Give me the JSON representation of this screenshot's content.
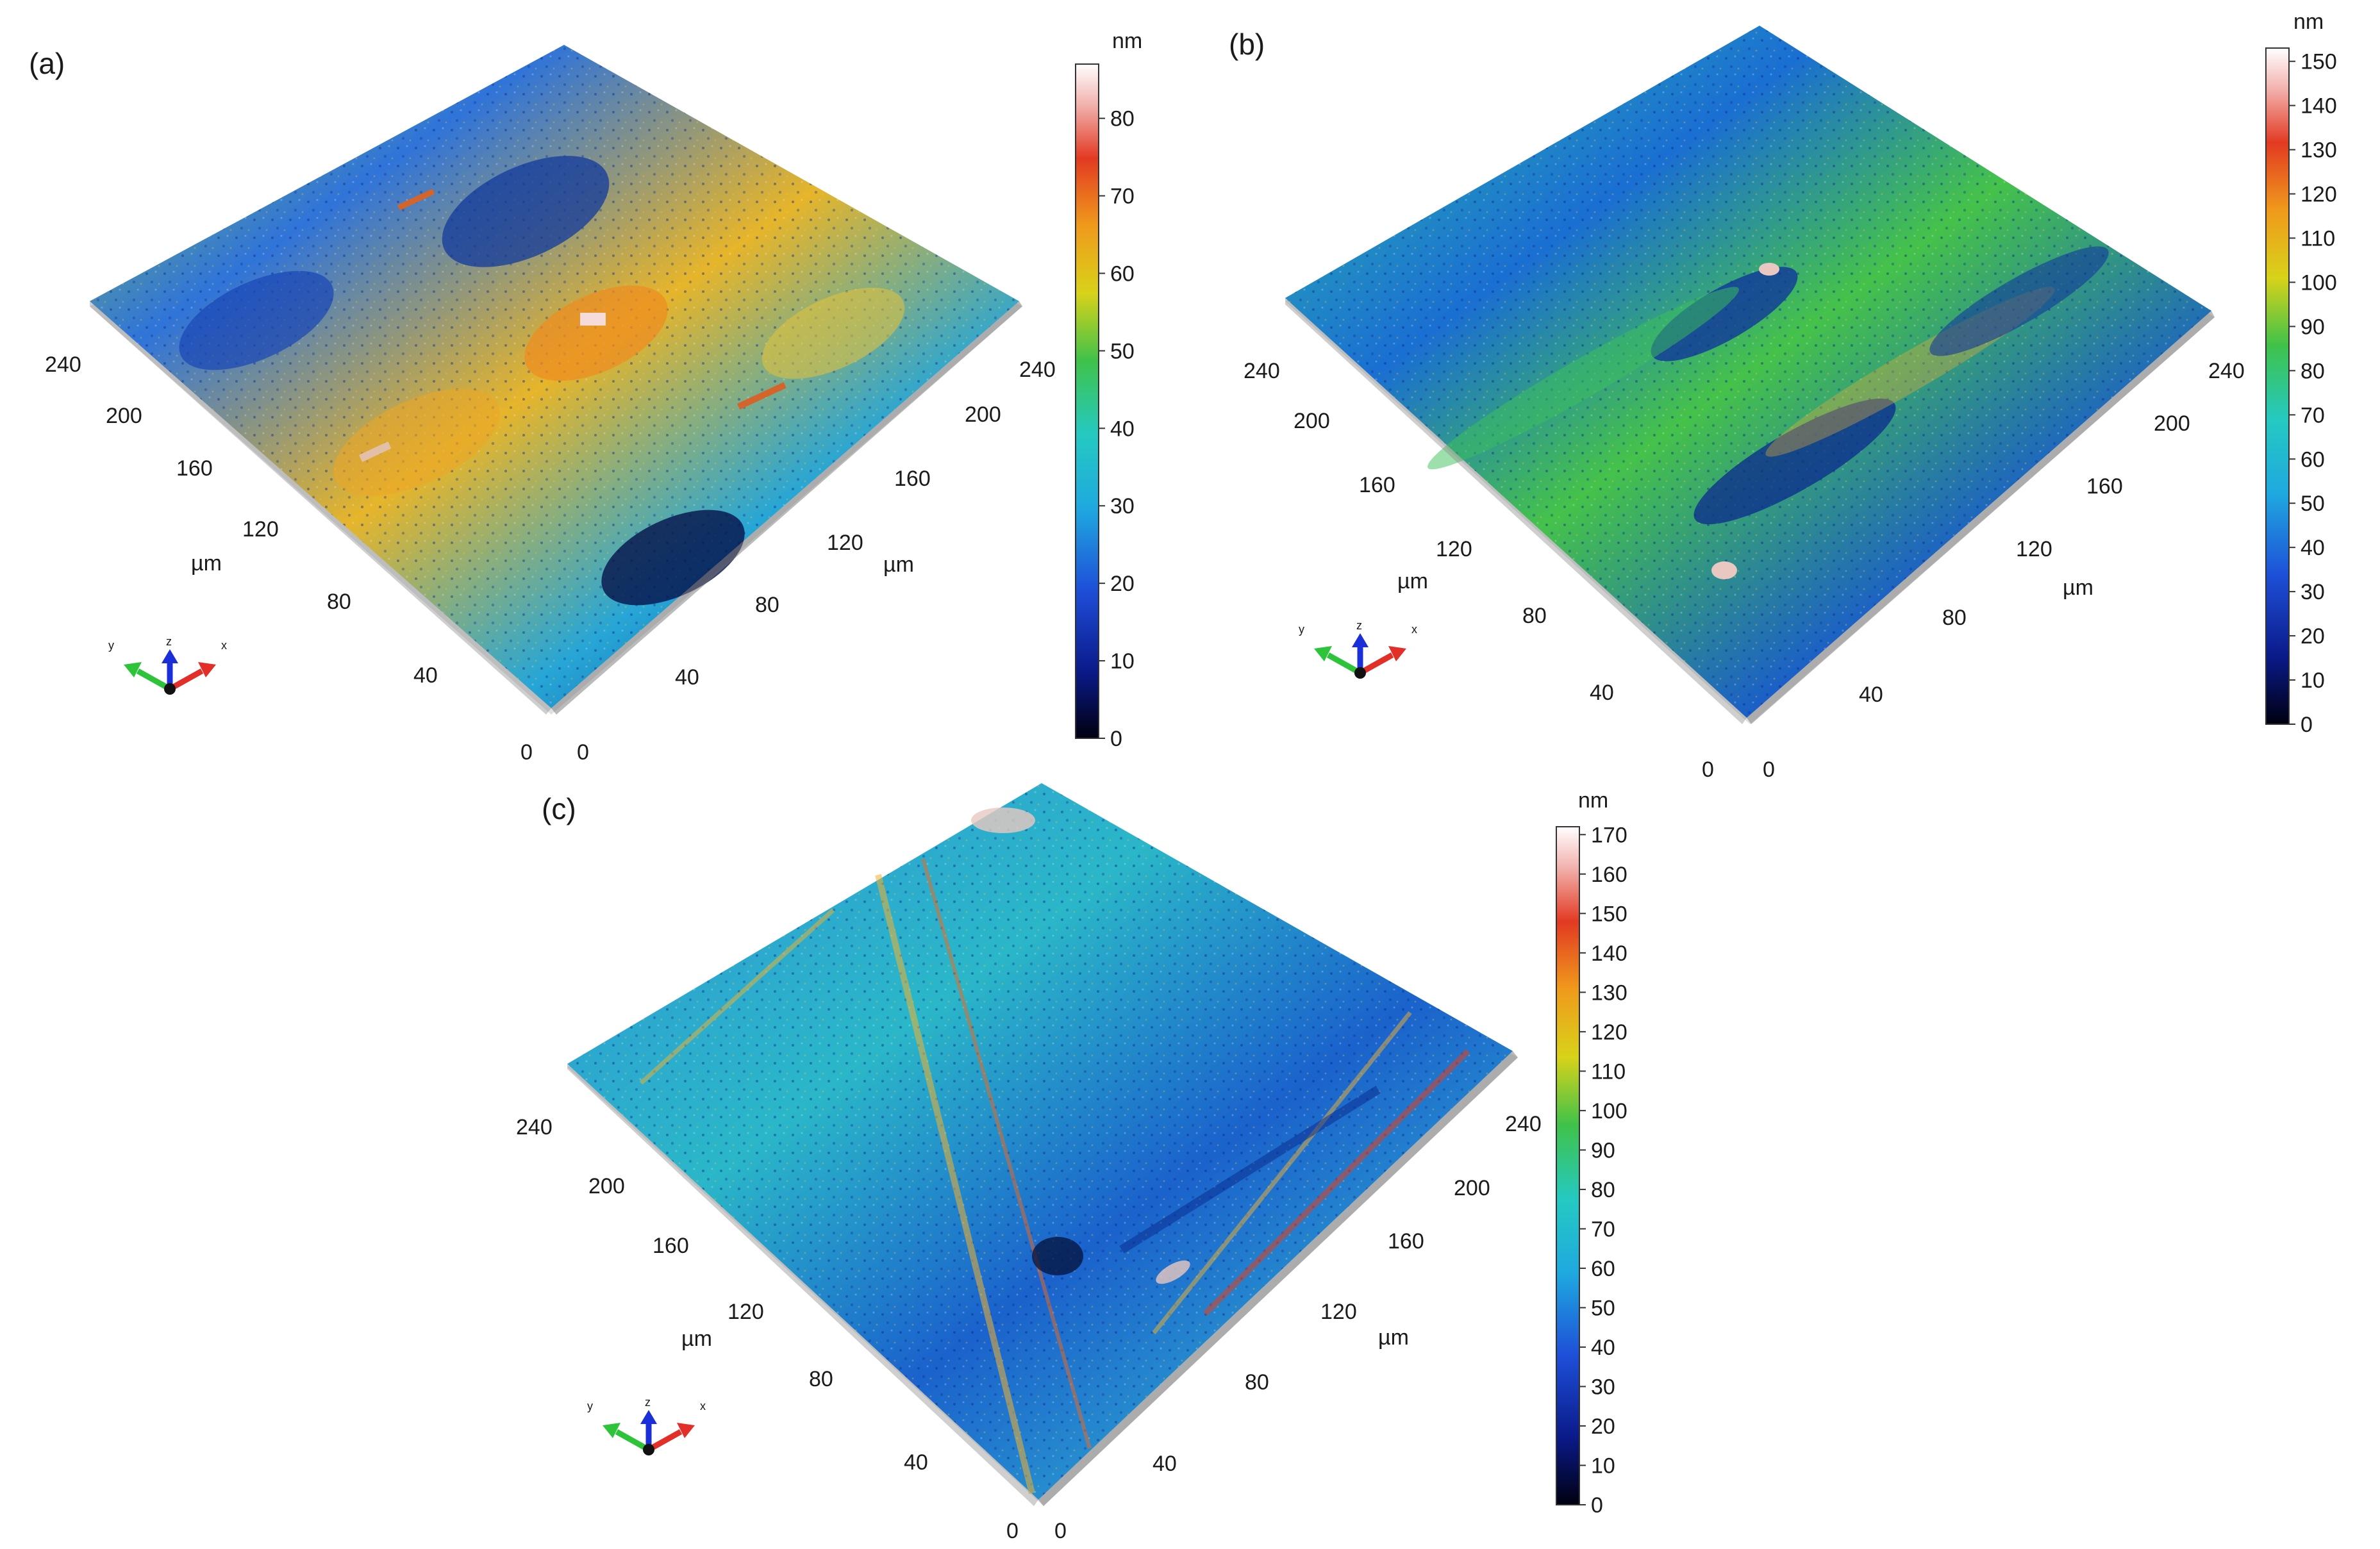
{
  "figure": {
    "unit_label": "µm",
    "panels": [
      {
        "id": "a",
        "label": "(a)",
        "colorbar": {
          "unit": "nm",
          "ticks": [
            "0",
            "10",
            "20",
            "30",
            "40",
            "50",
            "60",
            "70",
            "80"
          ],
          "max": 87
        },
        "left_axis_ticks": [
          "240",
          "200",
          "160",
          "120",
          "80",
          "40",
          "0"
        ],
        "right_axis_ticks": [
          "240",
          "200",
          "160",
          "120",
          "80",
          "40",
          "0"
        ],
        "triad_labels": {
          "x": "x",
          "y": "y",
          "z": "z"
        }
      },
      {
        "id": "b",
        "label": "(b)",
        "colorbar": {
          "unit": "nm",
          "ticks": [
            "0",
            "10",
            "20",
            "30",
            "40",
            "50",
            "60",
            "70",
            "80",
            "90",
            "100",
            "110",
            "120",
            "130",
            "140",
            "150"
          ],
          "max": 153
        },
        "left_axis_ticks": [
          "240",
          "200",
          "160",
          "120",
          "80",
          "40",
          "0"
        ],
        "right_axis_ticks": [
          "240",
          "200",
          "160",
          "120",
          "80",
          "40",
          "0"
        ],
        "triad_labels": {
          "x": "x",
          "y": "y",
          "z": "z"
        }
      },
      {
        "id": "c",
        "label": "(c)",
        "colorbar": {
          "unit": "nm",
          "ticks": [
            "0",
            "10",
            "20",
            "30",
            "40",
            "50",
            "60",
            "70",
            "80",
            "90",
            "100",
            "110",
            "120",
            "130",
            "140",
            "150",
            "160",
            "170"
          ],
          "max": 172
        },
        "left_axis_ticks": [
          "240",
          "200",
          "160",
          "120",
          "80",
          "40",
          "0"
        ],
        "right_axis_ticks": [
          "240",
          "200",
          "160",
          "120",
          "80",
          "40",
          "0"
        ],
        "triad_labels": {
          "x": "x",
          "y": "y",
          "z": "z"
        }
      }
    ]
  }
}
